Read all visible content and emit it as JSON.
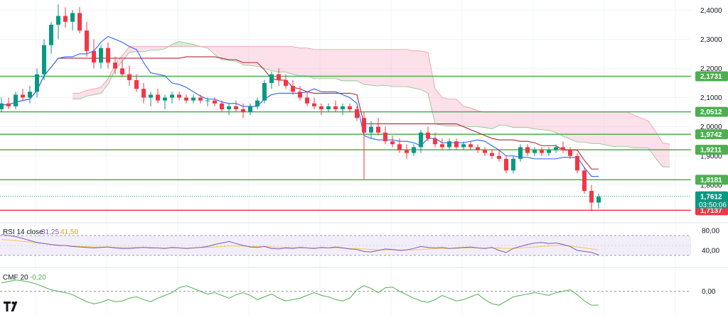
{
  "colors": {
    "up": "#089981",
    "down": "#f23645",
    "kijun": "#b22833",
    "tenkan": "#2962ff",
    "cloud_bull": "#a5d6a7",
    "cloud_bear": "#f8bbd0",
    "level_green": "#4caf50",
    "level_red": "#f23645",
    "rsi_line": "#7e57c2",
    "rsi_ma": "#f7c948",
    "cmf_line": "#4caf50",
    "price_badge": "#089981"
  },
  "chart_data": [
    {
      "type": "candlestick",
      "title": "",
      "price_axis_ticks": [
        "2,4000",
        "2,3000",
        "2,2000",
        "2,1000",
        "2,0000",
        "1,9000",
        "1,8000"
      ],
      "ylim": [
        1.695,
        2.425
      ],
      "support_resistance_levels": [
        {
          "label": "2,1731",
          "value": 2.1731,
          "color": "green"
        },
        {
          "label": "2,0512",
          "value": 2.0512,
          "color": "green"
        },
        {
          "label": "1,9742",
          "value": 1.9742,
          "color": "green"
        },
        {
          "label": "1,9211",
          "value": 1.9211,
          "color": "green"
        },
        {
          "label": "1,8181",
          "value": 1.8181,
          "color": "green"
        },
        {
          "label": "1,7137",
          "value": 1.7137,
          "color": "red"
        }
      ],
      "current_price": {
        "label": "1,7612",
        "value": 1.7612,
        "countdown": "03:50:06"
      },
      "candles_ohlc": [
        [
          2.06,
          2.1,
          2.05,
          2.08
        ],
        [
          2.08,
          2.1,
          2.06,
          2.07
        ],
        [
          2.07,
          2.12,
          2.06,
          2.11
        ],
        [
          2.11,
          2.13,
          2.09,
          2.1
        ],
        [
          2.1,
          2.14,
          2.08,
          2.12
        ],
        [
          2.12,
          2.2,
          2.1,
          2.18
        ],
        [
          2.18,
          2.3,
          2.16,
          2.28
        ],
        [
          2.28,
          2.36,
          2.25,
          2.35
        ],
        [
          2.35,
          2.42,
          2.3,
          2.38
        ],
        [
          2.38,
          2.41,
          2.34,
          2.36
        ],
        [
          2.36,
          2.4,
          2.33,
          2.39
        ],
        [
          2.39,
          2.41,
          2.32,
          2.33
        ],
        [
          2.33,
          2.36,
          2.24,
          2.26
        ],
        [
          2.26,
          2.3,
          2.2,
          2.22
        ],
        [
          2.22,
          2.28,
          2.2,
          2.27
        ],
        [
          2.27,
          2.29,
          2.2,
          2.22
        ],
        [
          2.22,
          2.24,
          2.18,
          2.2
        ],
        [
          2.2,
          2.23,
          2.17,
          2.18
        ],
        [
          2.18,
          2.21,
          2.14,
          2.16
        ],
        [
          2.16,
          2.18,
          2.12,
          2.13
        ],
        [
          2.13,
          2.15,
          2.08,
          2.1
        ],
        [
          2.1,
          2.12,
          2.07,
          2.11
        ],
        [
          2.11,
          2.13,
          2.08,
          2.09
        ],
        [
          2.09,
          2.11,
          2.06,
          2.1
        ],
        [
          2.1,
          2.12,
          2.08,
          2.11
        ],
        [
          2.11,
          2.12,
          2.09,
          2.1
        ],
        [
          2.1,
          2.11,
          2.08,
          2.09
        ],
        [
          2.09,
          2.11,
          2.08,
          2.1
        ],
        [
          2.1,
          2.11,
          2.08,
          2.09
        ],
        [
          2.09,
          2.1,
          2.07,
          2.09
        ],
        [
          2.09,
          2.1,
          2.07,
          2.08
        ],
        [
          2.08,
          2.09,
          2.05,
          2.06
        ],
        [
          2.06,
          2.08,
          2.04,
          2.07
        ],
        [
          2.07,
          2.09,
          2.05,
          2.06
        ],
        [
          2.06,
          2.08,
          2.03,
          2.05
        ],
        [
          2.05,
          2.08,
          2.04,
          2.07
        ],
        [
          2.07,
          2.1,
          2.06,
          2.09
        ],
        [
          2.09,
          2.16,
          2.08,
          2.15
        ],
        [
          2.15,
          2.19,
          2.13,
          2.18
        ],
        [
          2.18,
          2.2,
          2.14,
          2.16
        ],
        [
          2.16,
          2.18,
          2.13,
          2.14
        ],
        [
          2.14,
          2.16,
          2.11,
          2.12
        ],
        [
          2.12,
          2.14,
          2.09,
          2.1
        ],
        [
          2.1,
          2.12,
          2.07,
          2.08
        ],
        [
          2.08,
          2.1,
          2.06,
          2.07
        ],
        [
          2.07,
          2.08,
          2.04,
          2.06
        ],
        [
          2.06,
          2.08,
          2.05,
          2.07
        ],
        [
          2.07,
          2.09,
          2.05,
          2.06
        ],
        [
          2.06,
          2.08,
          2.04,
          2.07
        ],
        [
          2.07,
          2.08,
          2.05,
          2.06
        ],
        [
          2.06,
          2.07,
          2.02,
          2.03
        ],
        [
          2.03,
          2.05,
          1.82,
          1.98
        ],
        [
          1.98,
          2.02,
          1.96,
          2.0
        ],
        [
          2.0,
          2.03,
          1.97,
          1.98
        ],
        [
          1.98,
          2.0,
          1.94,
          1.95
        ],
        [
          1.95,
          1.97,
          1.93,
          1.94
        ],
        [
          1.94,
          1.96,
          1.91,
          1.92
        ],
        [
          1.92,
          1.94,
          1.89,
          1.91
        ],
        [
          1.91,
          1.94,
          1.9,
          1.93
        ],
        [
          1.93,
          1.99,
          1.91,
          1.98
        ],
        [
          1.98,
          2.0,
          1.95,
          1.96
        ],
        [
          1.96,
          1.98,
          1.93,
          1.94
        ],
        [
          1.94,
          1.96,
          1.92,
          1.93
        ],
        [
          1.93,
          1.96,
          1.92,
          1.95
        ],
        [
          1.95,
          1.96,
          1.92,
          1.93
        ],
        [
          1.93,
          1.95,
          1.92,
          1.94
        ],
        [
          1.94,
          1.95,
          1.92,
          1.93
        ],
        [
          1.93,
          1.94,
          1.91,
          1.92
        ],
        [
          1.92,
          1.93,
          1.9,
          1.91
        ],
        [
          1.91,
          1.92,
          1.89,
          1.9
        ],
        [
          1.9,
          1.92,
          1.88,
          1.89
        ],
        [
          1.89,
          1.9,
          1.84,
          1.85
        ],
        [
          1.85,
          1.9,
          1.84,
          1.89
        ],
        [
          1.89,
          1.94,
          1.88,
          1.93
        ],
        [
          1.93,
          1.94,
          1.9,
          1.91
        ],
        [
          1.91,
          1.93,
          1.9,
          1.92
        ],
        [
          1.92,
          1.93,
          1.9,
          1.91
        ],
        [
          1.91,
          1.93,
          1.9,
          1.92
        ],
        [
          1.92,
          1.94,
          1.91,
          1.93
        ],
        [
          1.93,
          1.95,
          1.91,
          1.92
        ],
        [
          1.92,
          1.93,
          1.89,
          1.9
        ],
        [
          1.9,
          1.91,
          1.84,
          1.85
        ],
        [
          1.85,
          1.86,
          1.77,
          1.78
        ],
        [
          1.78,
          1.8,
          1.71,
          1.74
        ],
        [
          1.74,
          1.77,
          1.72,
          1.76
        ]
      ]
    },
    {
      "type": "line",
      "indicator": "RSI",
      "legend_name": "RSI 14 close",
      "legend_value_rsi": "31,25",
      "legend_value_ma": "41,50",
      "axis_ticks": [
        "80,00",
        "40,00"
      ],
      "ylim": [
        10,
        90
      ],
      "band": [
        30,
        70
      ],
      "series": [
        {
          "name": "RSI",
          "values": [
            72,
            70,
            68,
            64,
            60,
            56,
            54,
            52,
            50,
            50,
            48,
            47,
            46,
            45,
            46,
            47,
            45,
            44,
            44,
            45,
            46,
            45,
            45,
            44,
            46,
            45,
            44,
            45,
            46,
            48,
            52,
            55,
            58,
            54,
            50,
            47,
            46,
            48,
            44,
            43,
            45,
            44,
            46,
            45,
            44,
            46,
            45,
            47,
            45,
            43,
            42,
            38,
            37,
            40,
            43,
            42,
            40,
            41,
            44,
            48,
            46,
            45,
            46,
            44,
            45,
            46,
            47,
            45,
            44,
            46,
            40,
            36,
            44,
            48,
            52,
            55,
            56,
            54,
            55,
            52,
            48,
            40,
            38,
            36,
            31
          ]
        },
        {
          "name": "MA",
          "values": [
            62,
            61,
            60,
            58,
            57,
            55,
            54,
            52,
            51,
            50,
            49,
            48,
            48,
            47,
            47,
            47,
            46,
            46,
            46,
            46,
            46,
            46,
            45,
            45,
            45,
            45,
            45,
            45,
            46,
            46,
            47,
            48,
            49,
            49,
            49,
            48,
            48,
            48,
            47,
            46,
            46,
            46,
            45,
            45,
            45,
            45,
            45,
            45,
            45,
            44,
            44,
            43,
            42,
            41,
            41,
            41,
            41,
            41,
            41,
            42,
            43,
            43,
            44,
            44,
            44,
            45,
            45,
            45,
            45,
            45,
            45,
            44,
            44,
            45,
            46,
            47,
            48,
            49,
            50,
            50,
            49,
            47,
            45,
            43,
            41.5
          ]
        }
      ]
    },
    {
      "type": "line",
      "indicator": "CMF",
      "legend_name": "CMF 20",
      "legend_value": "-0,20",
      "axis_ticks": [
        "0,00"
      ],
      "ylim": [
        -0.3,
        0.3
      ],
      "series": [
        {
          "name": "CMF",
          "values": [
            0.12,
            0.14,
            0.16,
            0.15,
            0.13,
            0.1,
            0.06,
            0.02,
            0.0,
            -0.02,
            -0.05,
            -0.1,
            -0.15,
            -0.18,
            -0.16,
            -0.12,
            -0.15,
            -0.14,
            -0.1,
            -0.08,
            -0.12,
            -0.15,
            -0.1,
            -0.06,
            -0.02,
            0.05,
            0.08,
            0.04,
            0.0,
            -0.04,
            -0.02,
            -0.06,
            -0.1,
            -0.05,
            -0.02,
            -0.06,
            -0.12,
            -0.08,
            -0.04,
            -0.1,
            -0.14,
            -0.12,
            -0.1,
            -0.06,
            -0.02,
            -0.06,
            -0.08,
            -0.12,
            -0.14,
            -0.1,
            0.02,
            0.08,
            0.04,
            -0.02,
            0.05,
            0.06,
            0.0,
            -0.05,
            -0.1,
            -0.14,
            -0.16,
            -0.12,
            -0.06,
            -0.1,
            -0.14,
            -0.12,
            -0.08,
            -0.04,
            -0.12,
            -0.18,
            -0.2,
            -0.14,
            -0.08,
            -0.06,
            -0.04,
            -0.02,
            -0.04,
            -0.06,
            -0.02,
            -0.0,
            0.02,
            -0.05,
            -0.14,
            -0.2,
            -0.2
          ]
        }
      ]
    }
  ],
  "branding": {
    "logo_text": "TV"
  }
}
